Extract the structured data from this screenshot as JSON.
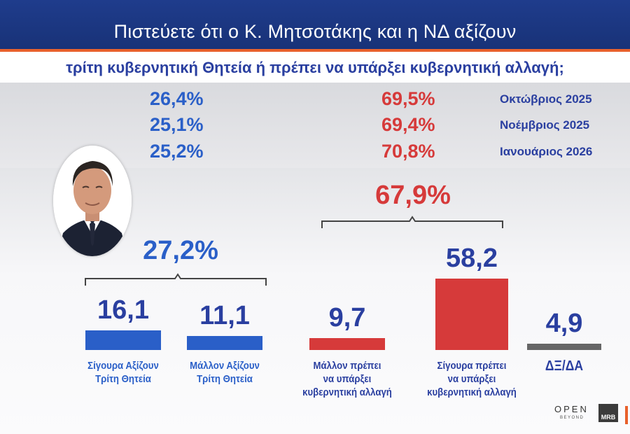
{
  "chart_data": {
    "type": "bar",
    "title": "Πιστεύετε ότι ο Κ. Μητσοτάκης και η ΝΔ αξίζουν",
    "subtitle": "τρίτη κυβερνητική Θητεία ή πρέπει να υπάρξει κυβερνητική αλλαγή;",
    "history": [
      {
        "month": "Οκτώβριος 2025",
        "left": "26,4%",
        "right": "69,5%"
      },
      {
        "month": "Νοέμβριος 2025",
        "left": "25,1%",
        "right": "69,4%"
      },
      {
        "month": "Ιανουάριος 2026",
        "left": "25,2%",
        "right": "70,8%"
      }
    ],
    "groups": [
      {
        "total_label": "27,2%",
        "color": "#2a5fc8"
      },
      {
        "total_label": "67,9%",
        "color": "#d63a3a"
      }
    ],
    "categories": [
      {
        "lines": [
          "Σίγουρα Αξίζουν",
          "Τρίτη Θητεία"
        ],
        "value": 16.1,
        "value_label": "16,1",
        "color": "#2a5fc8",
        "text_color": "#2a5fc8"
      },
      {
        "lines": [
          "Μάλλον Αξίζουν",
          "Τρίτη Θητεία"
        ],
        "value": 11.1,
        "value_label": "11,1",
        "color": "#2a5fc8",
        "text_color": "#2a5fc8"
      },
      {
        "lines": [
          "Μάλλον πρέπει",
          "να υπάρξει",
          "κυβερνητική αλλαγή"
        ],
        "value": 9.7,
        "value_label": "9,7",
        "color": "#d63a3a",
        "text_color": "#2a3fa0"
      },
      {
        "lines": [
          "Σίγουρα πρέπει",
          "να υπάρξει",
          "κυβερνητική αλλαγή"
        ],
        "value": 58.2,
        "value_label": "58,2",
        "color": "#d63a3a",
        "text_color": "#2a3fa0"
      },
      {
        "lines": [
          "ΔΞ/ΔΑ"
        ],
        "value": 4.9,
        "value_label": "4,9",
        "color": "#666666",
        "text_color": "#2a3fa0"
      }
    ],
    "value_color": "#2a3fa0"
  },
  "logos": {
    "open": "OPEN",
    "beyond": "BEYOND",
    "mrb": "MRB"
  }
}
